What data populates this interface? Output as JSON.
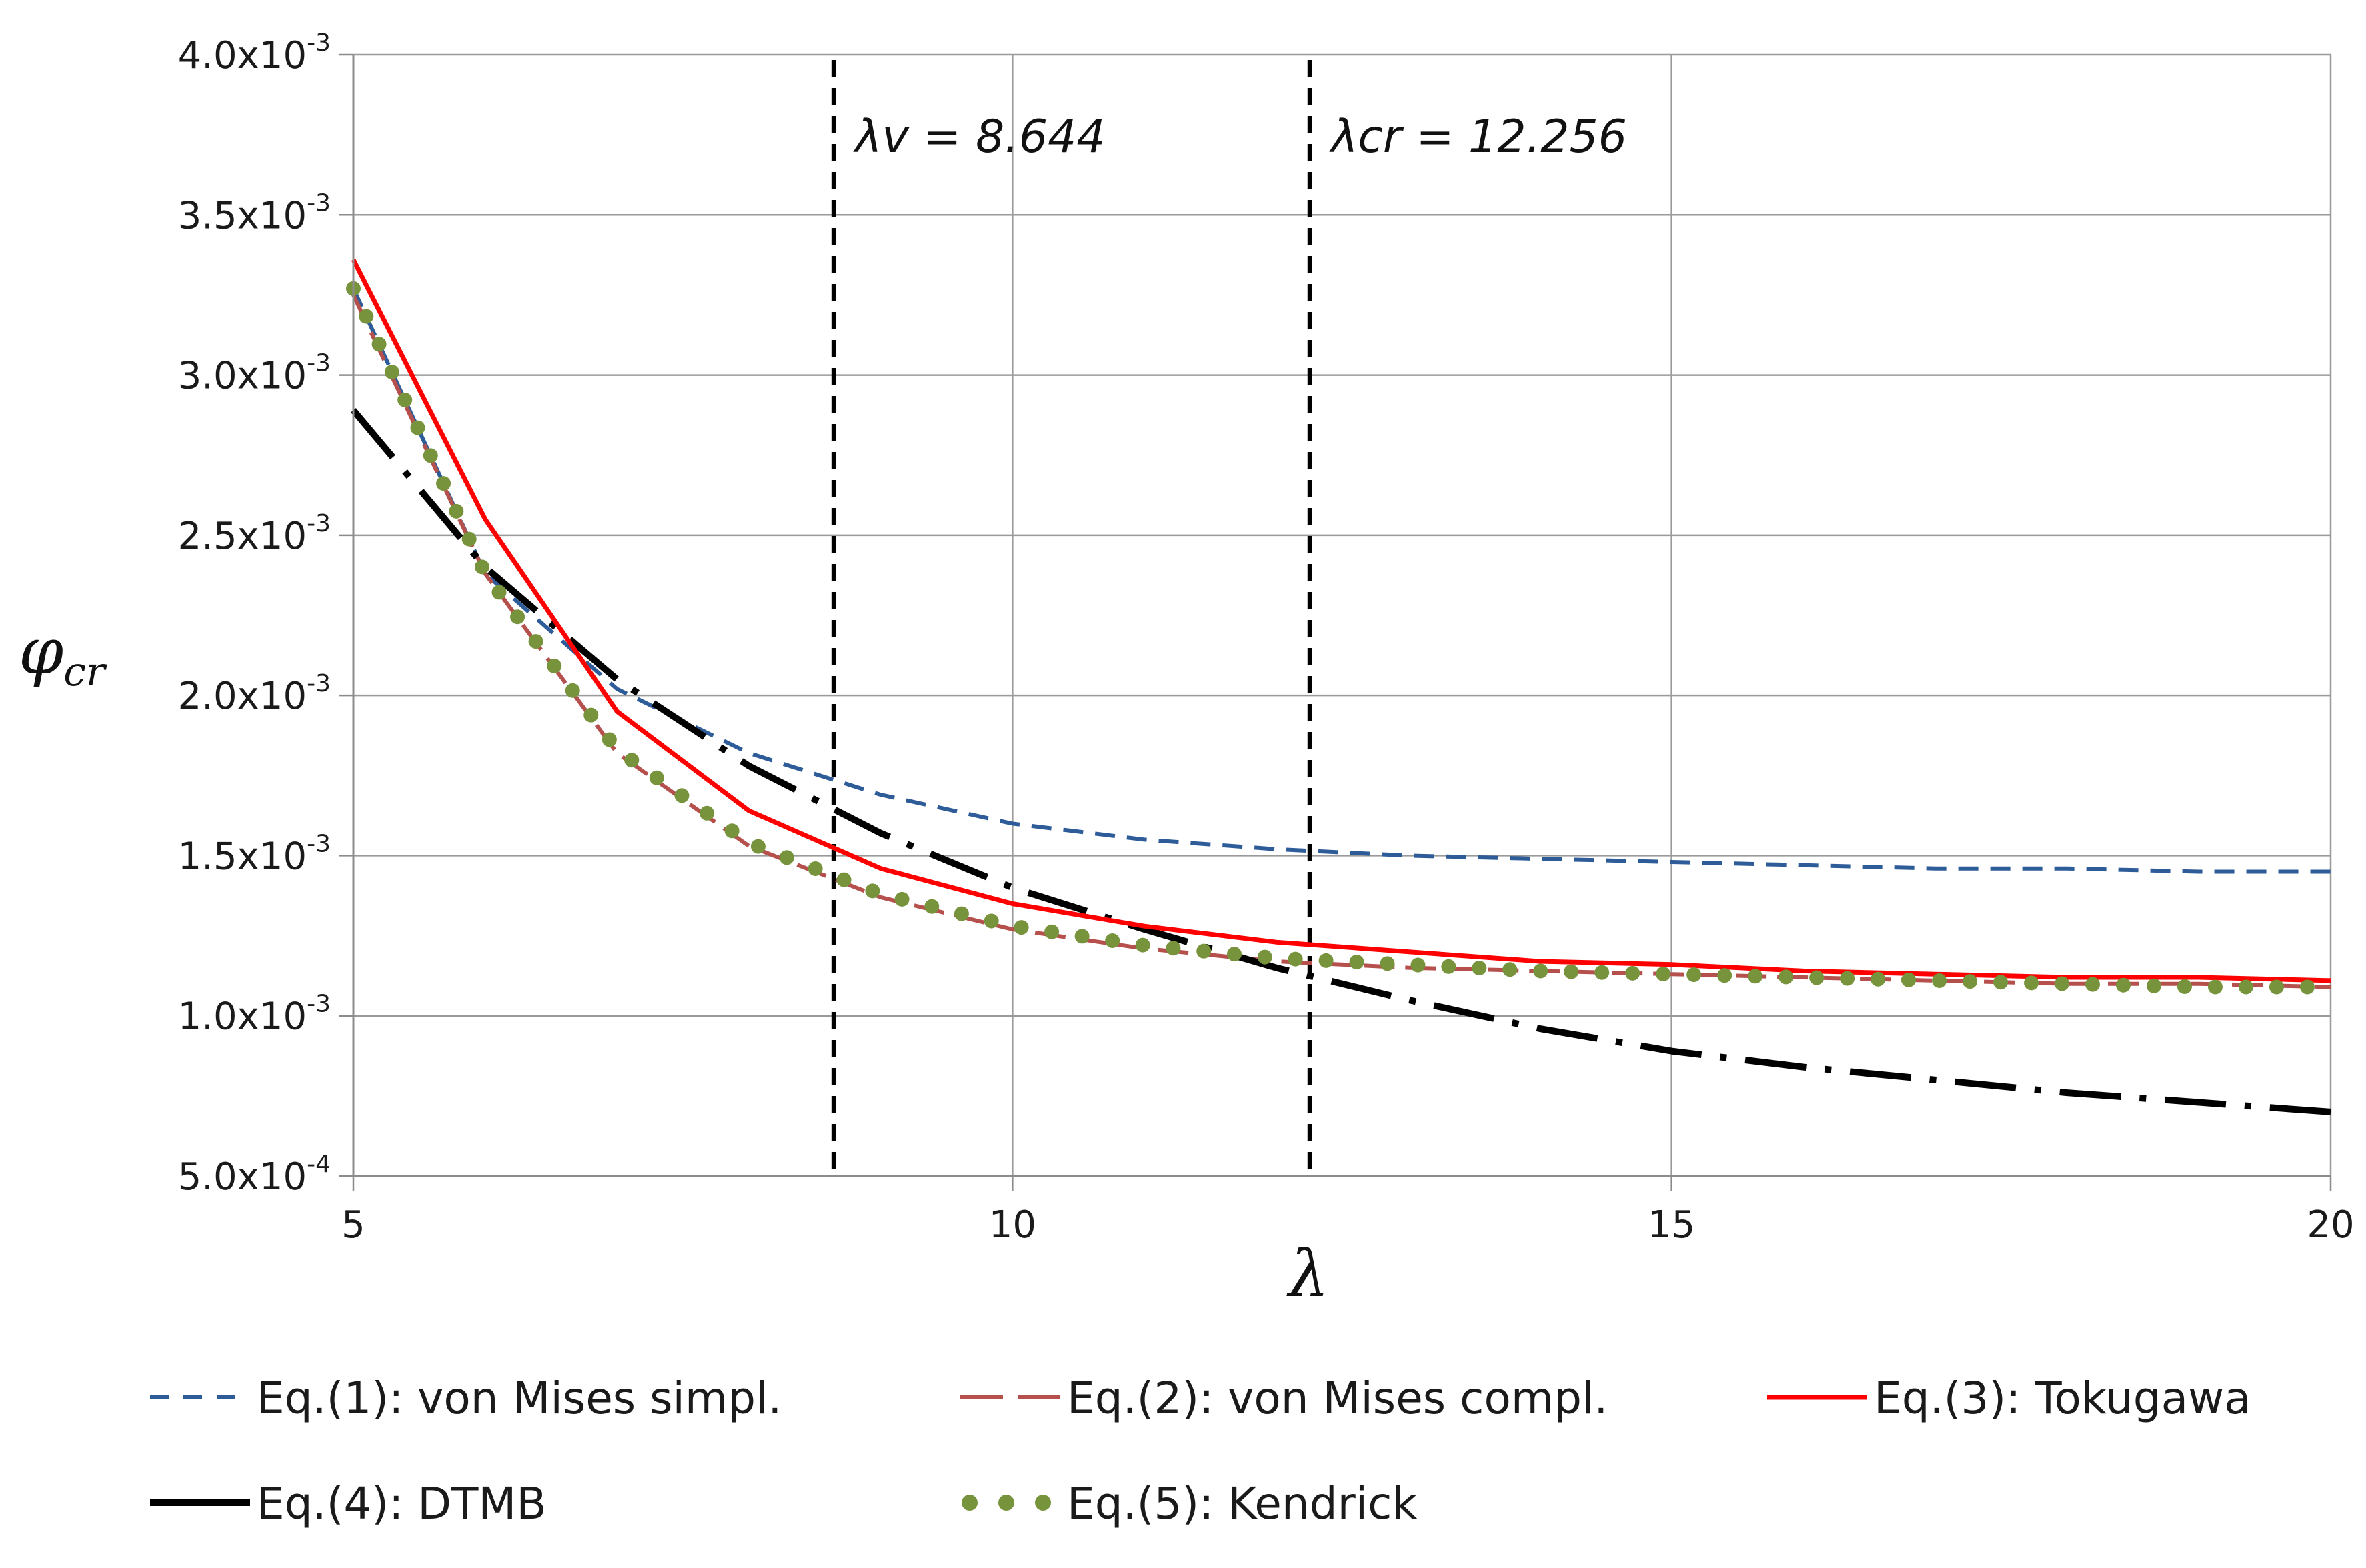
{
  "chart_data": {
    "type": "line",
    "title": "",
    "xlabel": "λ",
    "ylabel": "φcr",
    "ylabel_main": "φ",
    "ylabel_sub": "cr",
    "xlim": [
      5,
      20
    ],
    "ylim": [
      0.0005,
      0.004
    ],
    "grid": true,
    "legend_position": "bottom",
    "x_ticks": [
      {
        "value": 5,
        "label": "5"
      },
      {
        "value": 10,
        "label": "10"
      },
      {
        "value": 15,
        "label": "15"
      },
      {
        "value": 20,
        "label": "20"
      }
    ],
    "y_ticks": [
      {
        "value": 0.0005,
        "mant": "5.0x10",
        "exp": "-4"
      },
      {
        "value": 0.001,
        "mant": "1.0x10",
        "exp": "-3"
      },
      {
        "value": 0.0015,
        "mant": "1.5x10",
        "exp": "-3"
      },
      {
        "value": 0.002,
        "mant": "2.0x10",
        "exp": "-3"
      },
      {
        "value": 0.0025,
        "mant": "2.5x10",
        "exp": "-3"
      },
      {
        "value": 0.003,
        "mant": "3.0x10",
        "exp": "-3"
      },
      {
        "value": 0.0035,
        "mant": "3.5x10",
        "exp": "-3"
      },
      {
        "value": 0.004,
        "mant": "4.0x10",
        "exp": "-3"
      }
    ],
    "annotations": [
      {
        "x": 8.644,
        "text": "λv = 8.644"
      },
      {
        "x": 12.256,
        "text": "λcr = 12.256"
      }
    ],
    "series": [
      {
        "name": "Eq.(1): von Mises simpl.",
        "style": "dash",
        "color": "#2e5c99",
        "x": [
          5,
          6,
          7,
          8,
          9,
          10,
          11,
          12,
          13,
          14,
          15,
          16,
          17,
          18,
          19,
          20
        ],
        "y": [
          0.00327,
          0.00238,
          0.00202,
          0.00182,
          0.00169,
          0.0016,
          0.00155,
          0.00152,
          0.0015,
          0.00149,
          0.00148,
          0.00147,
          0.00146,
          0.00146,
          0.00145,
          0.00145
        ]
      },
      {
        "name": "Eq.(2): von Mises compl.",
        "style": "longdash",
        "color": "#b5504d",
        "x": [
          5,
          6,
          7,
          8,
          9,
          10,
          11,
          12,
          13,
          14,
          15,
          16,
          17,
          18,
          19,
          20
        ],
        "y": [
          0.00325,
          0.00238,
          0.00182,
          0.00153,
          0.00137,
          0.00127,
          0.00121,
          0.00117,
          0.00115,
          0.00114,
          0.00113,
          0.00112,
          0.00111,
          0.0011,
          0.0011,
          0.00109
        ]
      },
      {
        "name": "Eq.(3): Tokugawa",
        "style": "solid",
        "color": "#ff0000",
        "x": [
          5,
          6,
          7,
          8,
          9,
          10,
          11,
          12,
          13,
          14,
          15,
          16,
          17,
          18,
          19,
          20
        ],
        "y": [
          0.00336,
          0.00255,
          0.00195,
          0.00164,
          0.00146,
          0.00135,
          0.00128,
          0.00123,
          0.0012,
          0.00117,
          0.00116,
          0.00114,
          0.00113,
          0.00112,
          0.00112,
          0.00111
        ]
      },
      {
        "name": "Eq.(4): DTMB",
        "style": "dashdot",
        "color": "#000000",
        "x": [
          5,
          6,
          7,
          8,
          9,
          10,
          11,
          12,
          13,
          14,
          15,
          16,
          17,
          18,
          19,
          20
        ],
        "y": [
          0.00289,
          0.0024,
          0.00205,
          0.00178,
          0.00157,
          0.0014,
          0.00127,
          0.00115,
          0.00105,
          0.00096,
          0.00089,
          0.00084,
          0.0008,
          0.00076,
          0.00073,
          0.0007
        ]
      },
      {
        "name": "Eq.(5): Kendrick",
        "style": "dots",
        "color": "#77933c",
        "x": [
          5,
          6,
          7,
          8,
          9,
          10,
          11,
          12,
          13,
          14,
          15,
          16,
          17,
          18,
          19,
          20
        ],
        "y": [
          0.00327,
          0.00238,
          0.00183,
          0.00154,
          0.00138,
          0.00128,
          0.00122,
          0.00118,
          0.00116,
          0.00114,
          0.00113,
          0.00112,
          0.00111,
          0.0011,
          0.00109,
          0.00109
        ]
      }
    ]
  }
}
